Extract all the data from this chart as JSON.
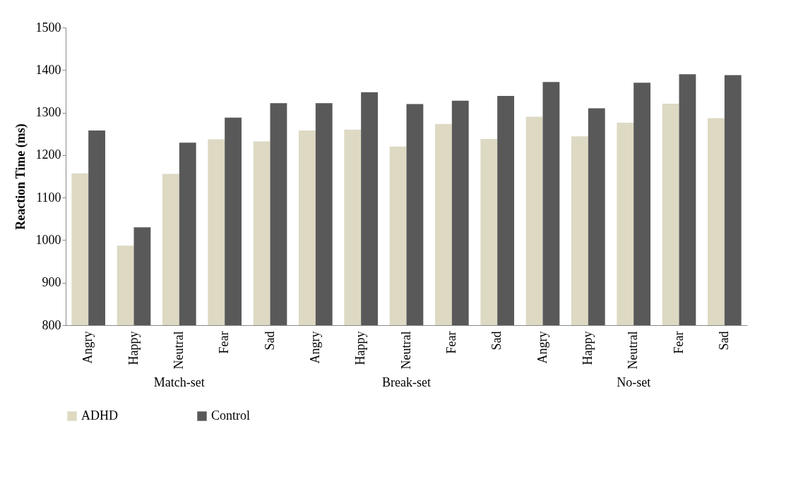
{
  "chart_data": {
    "type": "bar",
    "ylabel": "Reaction Time (ms)",
    "categories": [
      "Angry",
      "Happy",
      "Neutral",
      "Fear",
      "Sad",
      "Angry",
      "Happy",
      "Neutral",
      "Fear",
      "Sad",
      "Angry",
      "Happy",
      "Neutral",
      "Fear",
      "Sad"
    ],
    "series": [
      {
        "name": "ADHD",
        "color": "#ddd9c3",
        "values": [
          1157,
          987,
          1156,
          1237,
          1232,
          1258,
          1260,
          1220,
          1273,
          1238,
          1290,
          1244,
          1276,
          1321,
          1287
        ]
      },
      {
        "name": "Control",
        "color": "#595959",
        "values": [
          1258,
          1030,
          1229,
          1288,
          1322,
          1322,
          1348,
          1320,
          1328,
          1339,
          1372,
          1310,
          1370,
          1390,
          1388
        ]
      }
    ],
    "annotations": [
      "Match-set",
      "Break-set",
      "No-set"
    ],
    "ylim": [
      800,
      1500
    ],
    "yticks": [
      800,
      900,
      1000,
      1100,
      1200,
      1300,
      1400,
      1500
    ],
    "grid": false,
    "legend": "bottom"
  }
}
